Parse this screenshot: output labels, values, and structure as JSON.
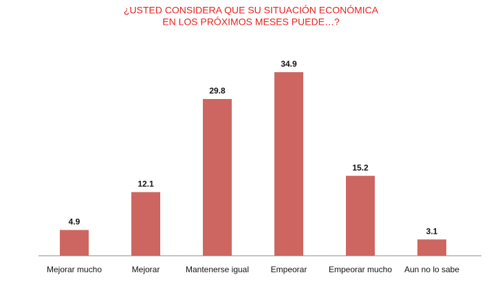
{
  "chart_data": {
    "type": "bar",
    "title": [
      "¿USTED CONSIDERA QUE SU SITUACIÓN ECONÓMICA",
      "EN LOS PRÓXIMOS MESES PUEDE…?"
    ],
    "categories": [
      "Mejorar mucho",
      "Mejorar",
      "Mantenerse igual",
      "Empeorar",
      "Empeorar mucho",
      "Aun no lo sabe"
    ],
    "values": [
      4.9,
      12.1,
      29.8,
      34.9,
      15.2,
      3.1
    ],
    "color": "#cd6660"
  }
}
